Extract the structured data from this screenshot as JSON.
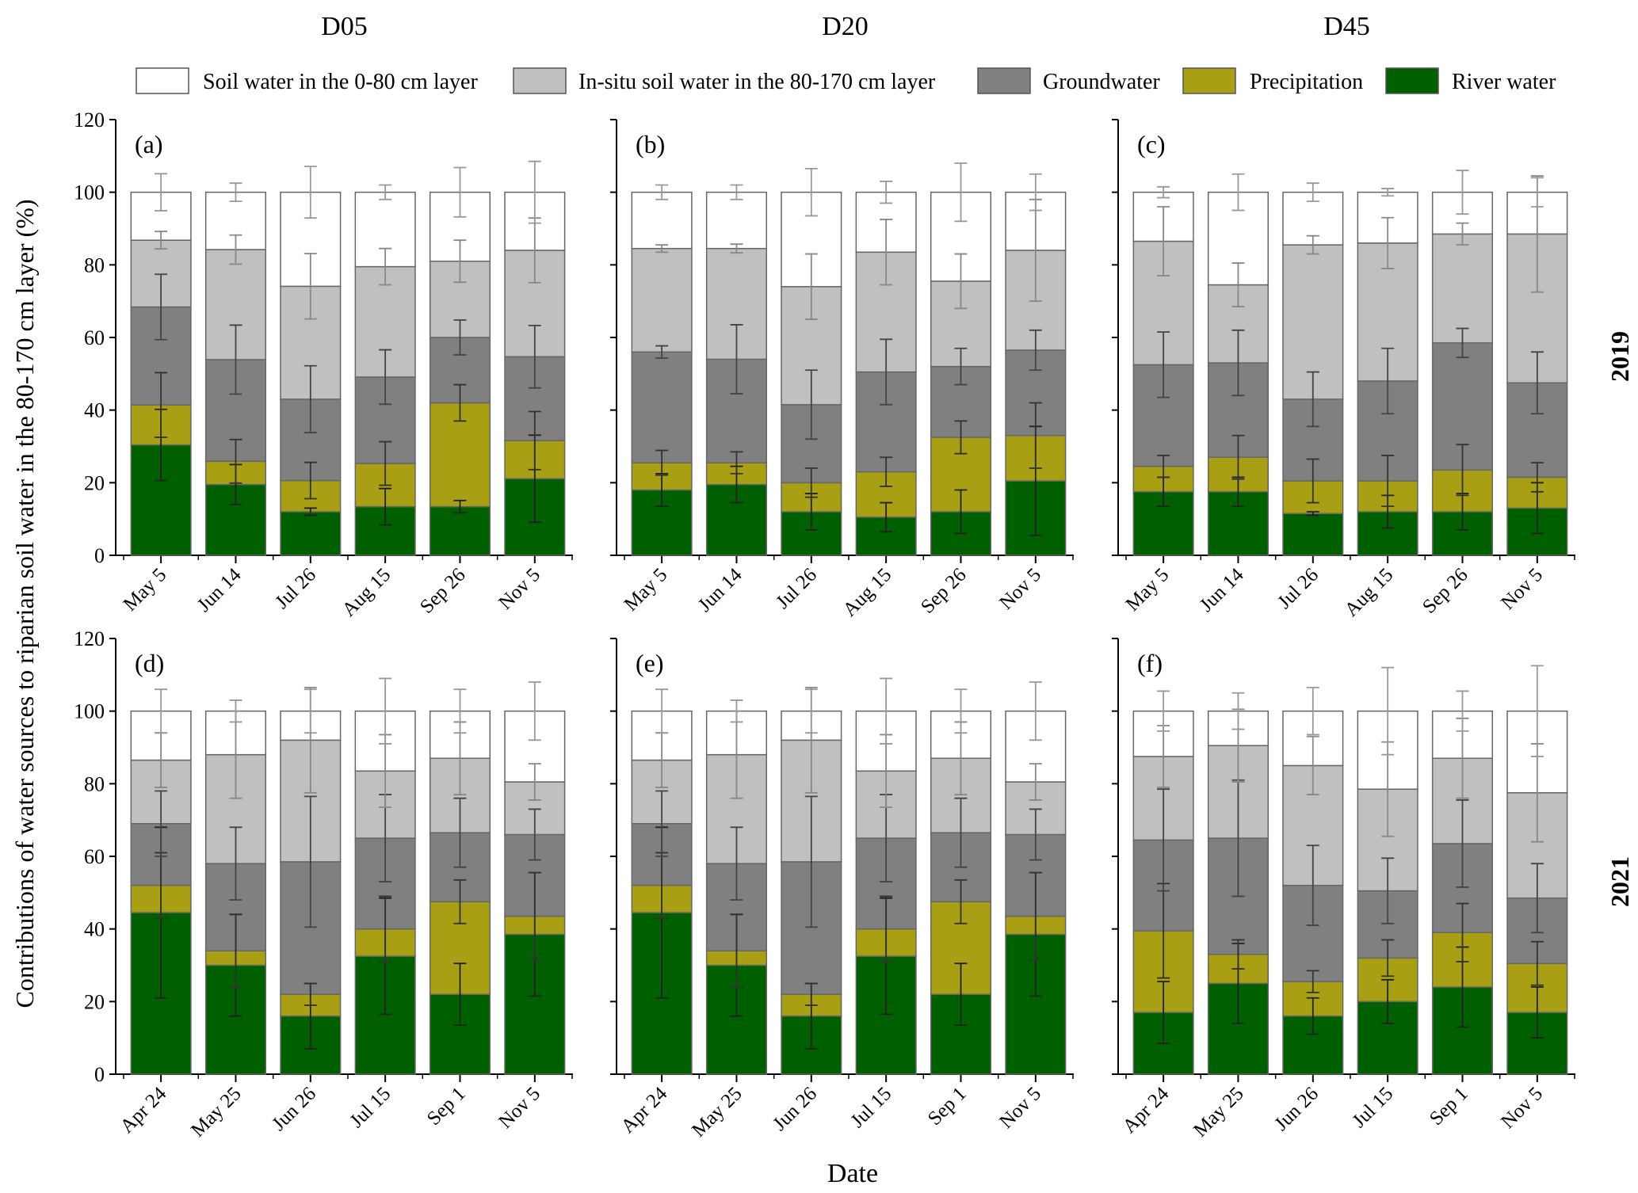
{
  "chart_data": {
    "type": "bar",
    "stacked": true,
    "ylabel": "Contributions of water sources to riparian soil water in the 80-170 cm layer (%)",
    "xlabel": "Date",
    "ylim": [
      0,
      120
    ],
    "yticks": [
      0,
      20,
      40,
      60,
      80,
      100,
      120
    ],
    "column_titles": [
      "D05",
      "D20",
      "D45"
    ],
    "row_labels": [
      "2019",
      "2021"
    ],
    "legend": {
      "placement": "top",
      "entries": [
        {
          "name": "Soil water in the 0-80 cm layer",
          "color": "#ffffff"
        },
        {
          "name": "In-situ soil water in the 80-170 cm layer",
          "color": "#c0c0c0"
        },
        {
          "name": "Groundwater",
          "color": "#808080"
        },
        {
          "name": "Precipitation",
          "color": "#a89f14"
        },
        {
          "name": "River water",
          "color": "#006000"
        }
      ]
    },
    "series_order_bottom_to_top": [
      "River water",
      "Precipitation",
      "Groundwater",
      "In-situ soil water in the 80-170 cm layer",
      "Soil water in the 0-80 cm layer"
    ],
    "panels": [
      {
        "label": "(a)",
        "column": "D05",
        "row": "2019",
        "categories": [
          "May 5",
          "Jun 14",
          "Jul 26",
          "Aug 15",
          "Sep 26",
          "Nov 5"
        ],
        "values": [
          [
            30.4,
            11.0,
            27.0,
            18.4,
            13.2
          ],
          [
            19.5,
            6.4,
            28.0,
            30.3,
            15.8
          ],
          [
            12.0,
            8.6,
            22.4,
            31.1,
            25.9
          ],
          [
            13.4,
            11.9,
            23.8,
            30.4,
            20.5
          ],
          [
            13.4,
            28.6,
            18.0,
            21.0,
            19.0
          ],
          [
            21.1,
            10.5,
            23.1,
            29.3,
            16.0
          ]
        ],
        "errors": [
          [
            9.8,
            8.9,
            9.0,
            2.4,
            5.1
          ],
          [
            5.5,
            6.0,
            9.5,
            4.0,
            2.5
          ],
          [
            1.0,
            5.0,
            9.2,
            9.0,
            7.1
          ],
          [
            5.0,
            6.0,
            7.5,
            5.0,
            2.0
          ],
          [
            1.7,
            5.0,
            4.8,
            5.8,
            6.8
          ],
          [
            12.0,
            8.0,
            8.6,
            8.9,
            8.5
          ]
        ]
      },
      {
        "label": "(b)",
        "column": "D20",
        "row": "2019",
        "categories": [
          "May 5",
          "Jun 14",
          "Jul 26",
          "Aug 15",
          "Sep 26",
          "Nov 5"
        ],
        "values": [
          [
            18,
            7.5,
            30.5,
            28.5,
            15.5
          ],
          [
            19.5,
            6,
            28.5,
            30.5,
            15.5
          ],
          [
            12,
            8,
            21.5,
            32.5,
            26
          ],
          [
            10.5,
            12.5,
            27.5,
            33,
            16.5
          ],
          [
            12,
            20.5,
            19.5,
            23.5,
            24.5
          ],
          [
            20.5,
            12.5,
            23.5,
            27.5,
            16
          ]
        ],
        "errors": [
          [
            4.5,
            3.4,
            1.7,
            1.0,
            2.0
          ],
          [
            5.0,
            3.0,
            9.5,
            1.2,
            2.0
          ],
          [
            5.0,
            4.0,
            9.5,
            9.0,
            6.5
          ],
          [
            4.0,
            4.0,
            9.0,
            9.0,
            3.0
          ],
          [
            6.0,
            4.5,
            5.0,
            7.5,
            8.0
          ],
          [
            15.0,
            9.0,
            5.5,
            14.0,
            5.0
          ]
        ]
      },
      {
        "label": "(c)",
        "column": "D45",
        "row": "2019",
        "categories": [
          "May 5",
          "Jun 14",
          "Jul 26",
          "Aug 15",
          "Sep 26",
          "Nov 5"
        ],
        "values": [
          [
            17.5,
            7,
            28,
            34,
            13.5
          ],
          [
            17.5,
            9.5,
            26,
            21.5,
            25.5
          ],
          [
            11.5,
            9,
            22.5,
            42.5,
            14.5
          ],
          [
            12,
            8.5,
            27.5,
            38,
            14
          ],
          [
            12,
            11.5,
            35,
            30,
            11.5
          ],
          [
            13,
            8.5,
            26,
            41,
            11.5
          ]
        ],
        "errors": [
          [
            4.0,
            3.0,
            9.0,
            9.5,
            1.5
          ],
          [
            4.0,
            6.0,
            9.0,
            6.0,
            5.0
          ],
          [
            0.5,
            6.0,
            7.5,
            2.5,
            2.5
          ],
          [
            4.5,
            7.0,
            9.0,
            7.0,
            1.0
          ],
          [
            5.0,
            7.0,
            4.0,
            3.0,
            6.0
          ],
          [
            7.0,
            4.0,
            8.5,
            16.0,
            4.0
          ]
        ]
      },
      {
        "label": "(d)",
        "column": "D05",
        "row": "2021",
        "categories": [
          "Apr 24",
          "May 25",
          "Jun 26",
          "Jul 15",
          "Sep 1",
          "Nov 5"
        ],
        "values": [
          [
            44.5,
            7.5,
            17,
            17.5,
            13.5
          ],
          [
            30,
            4,
            24,
            30,
            12
          ],
          [
            16,
            6,
            36.5,
            33.5,
            8
          ],
          [
            32.5,
            7.5,
            25,
            18.5,
            16.5
          ],
          [
            22,
            25.5,
            19,
            20.5,
            13
          ],
          [
            38.5,
            5,
            22.5,
            14.5,
            19.5
          ]
        ],
        "errors": [
          [
            23.5,
            9,
            9,
            7.5,
            6
          ],
          [
            14,
            10,
            10,
            12,
            3
          ],
          [
            9,
            3,
            18,
            14.5,
            6
          ],
          [
            16,
            9,
            12,
            10,
            9
          ],
          [
            8.5,
            6,
            9.5,
            10,
            6
          ],
          [
            17,
            12,
            7,
            5,
            8
          ]
        ]
      },
      {
        "label": "(e)",
        "column": "D20",
        "row": "2021",
        "categories": [
          "Apr 24",
          "May 25",
          "Jun 26",
          "Jul 15",
          "Sep 1",
          "Nov 5"
        ],
        "values": [
          [
            44.5,
            7.5,
            17,
            17.5,
            13.5
          ],
          [
            30,
            4,
            24,
            30,
            12
          ],
          [
            16,
            6,
            36.5,
            33.5,
            8
          ],
          [
            32.5,
            7.5,
            25,
            18.5,
            16.5
          ],
          [
            22,
            25.5,
            19,
            20.5,
            13
          ],
          [
            38.5,
            5,
            22.5,
            14.5,
            19.5
          ]
        ],
        "errors": [
          [
            23.5,
            9,
            9,
            7.5,
            6
          ],
          [
            14,
            10,
            10,
            12,
            3
          ],
          [
            9,
            3,
            18,
            14.5,
            6
          ],
          [
            16,
            9,
            12,
            10,
            9
          ],
          [
            8.5,
            6,
            9.5,
            10,
            6
          ],
          [
            17,
            12,
            7,
            5,
            8
          ]
        ]
      },
      {
        "label": "(f)",
        "column": "D45",
        "row": "2021",
        "categories": [
          "Apr 24",
          "May 25",
          "Jun 26",
          "Jul 15",
          "Sep 1",
          "Nov 5"
        ],
        "values": [
          [
            17,
            22.5,
            25,
            23,
            12.5
          ],
          [
            25,
            8,
            32,
            25.5,
            9.5
          ],
          [
            16,
            9.5,
            26.5,
            33,
            15
          ],
          [
            20,
            12,
            18.5,
            28,
            21.5
          ],
          [
            24,
            15,
            24.5,
            23.5,
            13
          ],
          [
            17,
            13.5,
            18,
            29,
            22.5
          ]
        ],
        "errors": [
          [
            8.5,
            13,
            14,
            8.5,
            5.5
          ],
          [
            11,
            4,
            16,
            10,
            5
          ],
          [
            5,
            3,
            11,
            8,
            6.5
          ],
          [
            6,
            5,
            9,
            13,
            12
          ],
          [
            11,
            8,
            12,
            11,
            5.5
          ],
          [
            7,
            6,
            9.5,
            13.5,
            12.5
          ]
        ]
      }
    ]
  }
}
